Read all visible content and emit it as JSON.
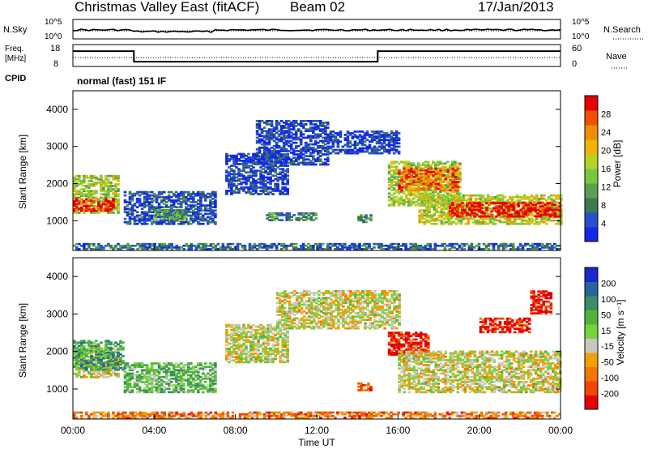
{
  "header": {
    "title": "Christmas Valley East (fitACF)",
    "beam": "Beam 02",
    "date": "17/Jan/2013"
  },
  "strip_nsky": {
    "left_label": "N.Sky",
    "left_ticks": [
      "10^5",
      "10^0"
    ],
    "right_label": "N.Search",
    "right_ticks": [
      "10^5",
      "10^0"
    ]
  },
  "strip_freq": {
    "left_label_1": "Freq.",
    "left_label_2": "[MHz]",
    "left_ticks": [
      "18",
      "8"
    ],
    "right_label": "Nave",
    "right_ticks": [
      "60",
      "0"
    ],
    "freq_steps": [
      {
        "t": 0,
        "v": 0.7
      },
      {
        "t": 3.0,
        "v": 0.7
      },
      {
        "t": 3.0,
        "v": 0.22
      },
      {
        "t": 15.0,
        "v": 0.22
      },
      {
        "t": 15.0,
        "v": 0.7
      },
      {
        "t": 24,
        "v": 0.7
      }
    ]
  },
  "cpid": {
    "label": "CPID",
    "mode": "normal (fast) 151 IF"
  },
  "colors": {
    "power": [
      "#1428e6",
      "#2850c8",
      "#3c7850",
      "#5aa050",
      "#78c83c",
      "#b4d228",
      "#f0b400",
      "#f08c00",
      "#f05000",
      "#e60000"
    ],
    "velocity": [
      "#1e28c8",
      "#2864a0",
      "#3c8c64",
      "#50b43c",
      "#78d23c",
      "#c8c8c0",
      "#f0a000",
      "#f07800",
      "#f04600",
      "#e60000"
    ]
  },
  "chart_data": [
    {
      "type": "heatmap",
      "name": "power",
      "ylabel": "Slant Range [km]",
      "yticks": [
        "1000",
        "2000",
        "3000",
        "4000"
      ],
      "ylim": [
        200,
        4500
      ],
      "xlim": [
        0,
        24
      ],
      "colorbar_label": "Power [dB]",
      "colorbar_ticks": [
        "4",
        "8",
        "12",
        "16",
        "20",
        "24",
        "28"
      ],
      "regions": [
        {
          "t0": 0.0,
          "t1": 2.2,
          "r0": 1200,
          "r1": 2200,
          "level": 0.5
        },
        {
          "t0": 0.0,
          "t1": 2.0,
          "r0": 1250,
          "r1": 1600,
          "level": 0.9
        },
        {
          "t0": 2.5,
          "t1": 7.0,
          "r0": 900,
          "r1": 1800,
          "level": 0.15
        },
        {
          "t0": 4.0,
          "t1": 5.5,
          "r0": 1000,
          "r1": 1300,
          "level": 0.35
        },
        {
          "t0": 7.5,
          "t1": 10.5,
          "r0": 1700,
          "r1": 2800,
          "level": 0.1
        },
        {
          "t0": 9.0,
          "t1": 12.5,
          "r0": 2500,
          "r1": 3700,
          "level": 0.1
        },
        {
          "t0": 12.5,
          "t1": 16.0,
          "r0": 2800,
          "r1": 3400,
          "level": 0.1
        },
        {
          "t0": 9.5,
          "t1": 12.0,
          "r0": 1000,
          "r1": 1200,
          "level": 0.3
        },
        {
          "t0": 14.0,
          "t1": 14.7,
          "r0": 950,
          "r1": 1150,
          "level": 0.25
        },
        {
          "t0": 15.5,
          "t1": 19.0,
          "r0": 1400,
          "r1": 2600,
          "level": 0.5
        },
        {
          "t0": 16.0,
          "t1": 19.0,
          "r0": 1800,
          "r1": 2400,
          "level": 0.8
        },
        {
          "t0": 17.0,
          "t1": 24.0,
          "r0": 900,
          "r1": 1700,
          "level": 0.55
        },
        {
          "t0": 18.5,
          "t1": 24.0,
          "r0": 1100,
          "r1": 1500,
          "level": 0.95
        },
        {
          "t0": 0.0,
          "t1": 24.0,
          "r0": 220,
          "r1": 400,
          "level": 0.2
        }
      ]
    },
    {
      "type": "heatmap",
      "name": "velocity",
      "xlabel": "Time UT",
      "ylabel": "Slant Range [km]",
      "yticks": [
        "1000",
        "2000",
        "3000",
        "4000"
      ],
      "xticks": [
        "00:00",
        "04:00",
        "08:00",
        "12:00",
        "16:00",
        "20:00",
        "00:00"
      ],
      "ylim": [
        200,
        4500
      ],
      "xlim": [
        0,
        24
      ],
      "colorbar_label": "Velocity [m s⁻¹]",
      "colorbar_ticks": [
        "200",
        "100",
        "50",
        "15",
        "-15",
        "-50",
        "-100",
        "-200"
      ],
      "regions": [
        {
          "t0": 0.0,
          "t1": 2.2,
          "r0": 1300,
          "r1": 2100,
          "level": 0.55
        },
        {
          "t0": 0.0,
          "t1": 2.5,
          "r0": 1500,
          "r1": 2300,
          "level": 0.3
        },
        {
          "t0": 2.5,
          "t1": 7.0,
          "r0": 900,
          "r1": 1700,
          "level": 0.38
        },
        {
          "t0": 7.5,
          "t1": 10.5,
          "r0": 1700,
          "r1": 2700,
          "level": 0.55
        },
        {
          "t0": 10.0,
          "t1": 16.0,
          "r0": 2600,
          "r1": 3600,
          "level": 0.55
        },
        {
          "t0": 14.0,
          "t1": 14.7,
          "r0": 950,
          "r1": 1150,
          "level": 0.8
        },
        {
          "t0": 15.5,
          "t1": 17.5,
          "r0": 1900,
          "r1": 2500,
          "level": 0.95
        },
        {
          "t0": 16.0,
          "t1": 24.0,
          "r0": 900,
          "r1": 2000,
          "level": 0.55
        },
        {
          "t0": 20.0,
          "t1": 22.5,
          "r0": 2500,
          "r1": 2900,
          "level": 0.95
        },
        {
          "t0": 22.5,
          "t1": 23.5,
          "r0": 3000,
          "r1": 3600,
          "level": 0.95
        },
        {
          "t0": 0.0,
          "t1": 24.0,
          "r0": 220,
          "r1": 400,
          "level": 0.75
        }
      ]
    }
  ]
}
